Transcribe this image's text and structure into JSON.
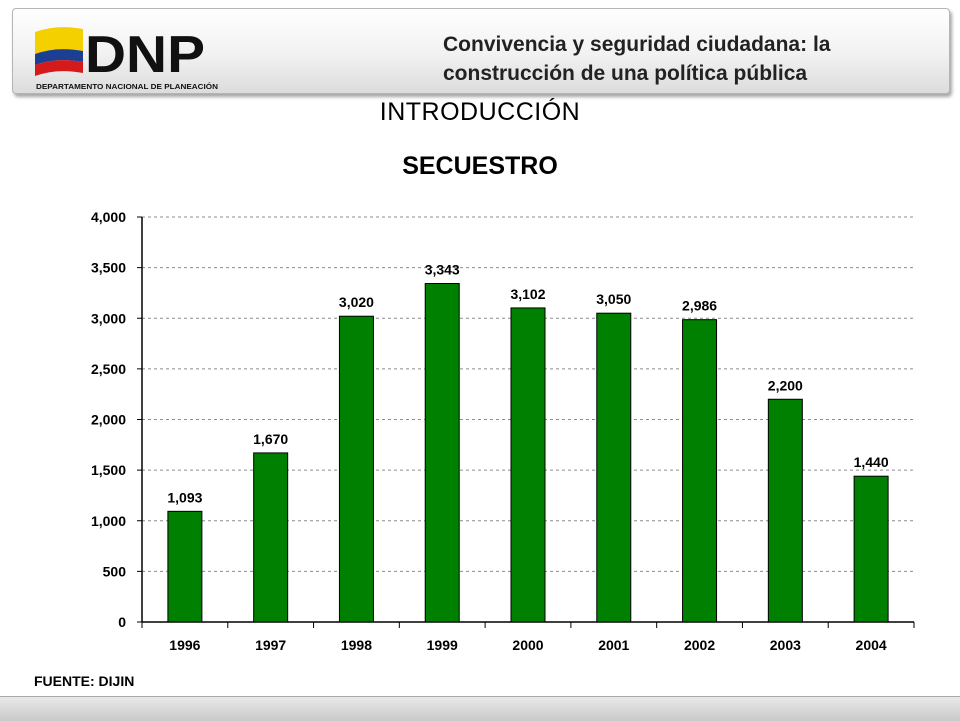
{
  "header": {
    "title": "Convivencia y seguridad ciudadana: la construcción de una política pública",
    "logo_text": "DNP",
    "logo_subtitle": "DEPARTAMENTO NACIONAL DE PLANEACIÓN"
  },
  "section_title": "INTRODUCCIÓN",
  "source_note": "FUENTE: DIJIN",
  "colors": {
    "bar": "#008000",
    "flag_yellow": "#f5d000",
    "flag_blue": "#1c3f94",
    "flag_red": "#d51a1a"
  },
  "chart_data": {
    "type": "bar",
    "title": "SECUESTRO",
    "categories": [
      "1996",
      "1997",
      "1998",
      "1999",
      "2000",
      "2001",
      "2002",
      "2003",
      "2004"
    ],
    "values": [
      1093,
      1670,
      3020,
      3343,
      3102,
      3050,
      2986,
      2200,
      1440
    ],
    "value_labels": [
      "1,093",
      "1,670",
      "3,020",
      "3,343",
      "3,102",
      "3,050",
      "2,986",
      "2,200",
      "1,440"
    ],
    "y_ticks": [
      0,
      500,
      1000,
      1500,
      2000,
      2500,
      3000,
      3500,
      4000
    ],
    "y_tick_labels": [
      "0",
      "500",
      "1,000",
      "1,500",
      "2,000",
      "2,500",
      "3,000",
      "3,500",
      "4,000"
    ],
    "ylim": [
      0,
      4000
    ],
    "xlabel": "",
    "ylabel": "",
    "grid": true,
    "legend": false
  }
}
